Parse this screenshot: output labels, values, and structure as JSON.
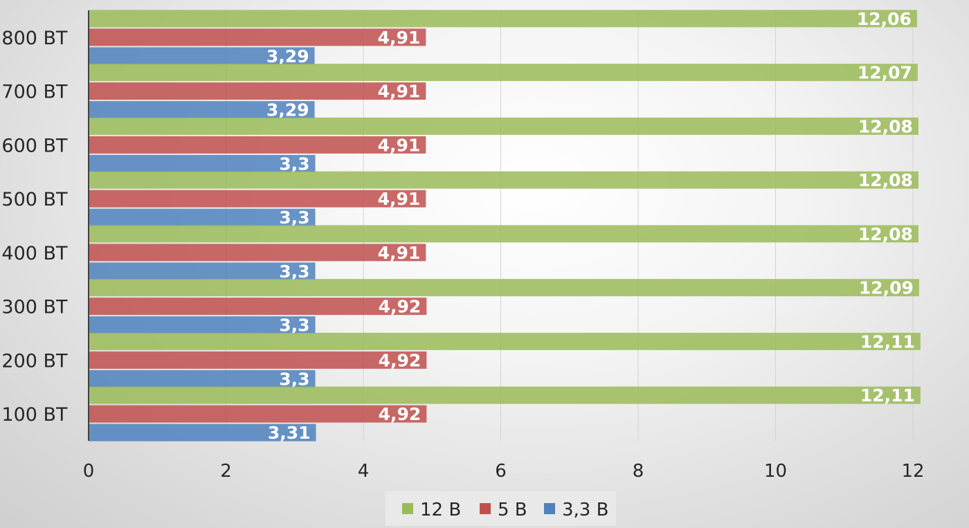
{
  "chart_data": {
    "type": "bar",
    "orientation": "horizontal",
    "categories": [
      "800 ВТ",
      "700 ВТ",
      "600 ВТ",
      "500 ВТ",
      "400 ВТ",
      "300 ВТ",
      "200 ВТ",
      "100 ВТ"
    ],
    "series": [
      {
        "name": "12 В",
        "color": "#9bbb59",
        "values": [
          12.06,
          12.07,
          12.08,
          12.08,
          12.08,
          12.09,
          12.11,
          12.11
        ],
        "labels": [
          "12,06",
          "12,07",
          "12,08",
          "12,08",
          "12,08",
          "12,09",
          "12,11",
          "12,11"
        ]
      },
      {
        "name": "5 В",
        "color": "#c0504d",
        "values": [
          4.91,
          4.91,
          4.91,
          4.91,
          4.91,
          4.92,
          4.92,
          4.92
        ],
        "labels": [
          "4,91",
          "4,91",
          "4,91",
          "4,91",
          "4,91",
          "4,92",
          "4,92",
          "4,92"
        ]
      },
      {
        "name": "3,3 В",
        "color": "#4f81bd",
        "values": [
          3.29,
          3.29,
          3.3,
          3.3,
          3.3,
          3.3,
          3.3,
          3.31
        ],
        "labels": [
          "3,29",
          "3,29",
          "3,3",
          "3,3",
          "3,3",
          "3,3",
          "3,3",
          "3,31"
        ]
      }
    ],
    "xlim": [
      0,
      12
    ],
    "xticks": [
      0,
      2,
      4,
      6,
      8,
      10,
      12
    ],
    "grid": true,
    "legend_position": "bottom"
  }
}
